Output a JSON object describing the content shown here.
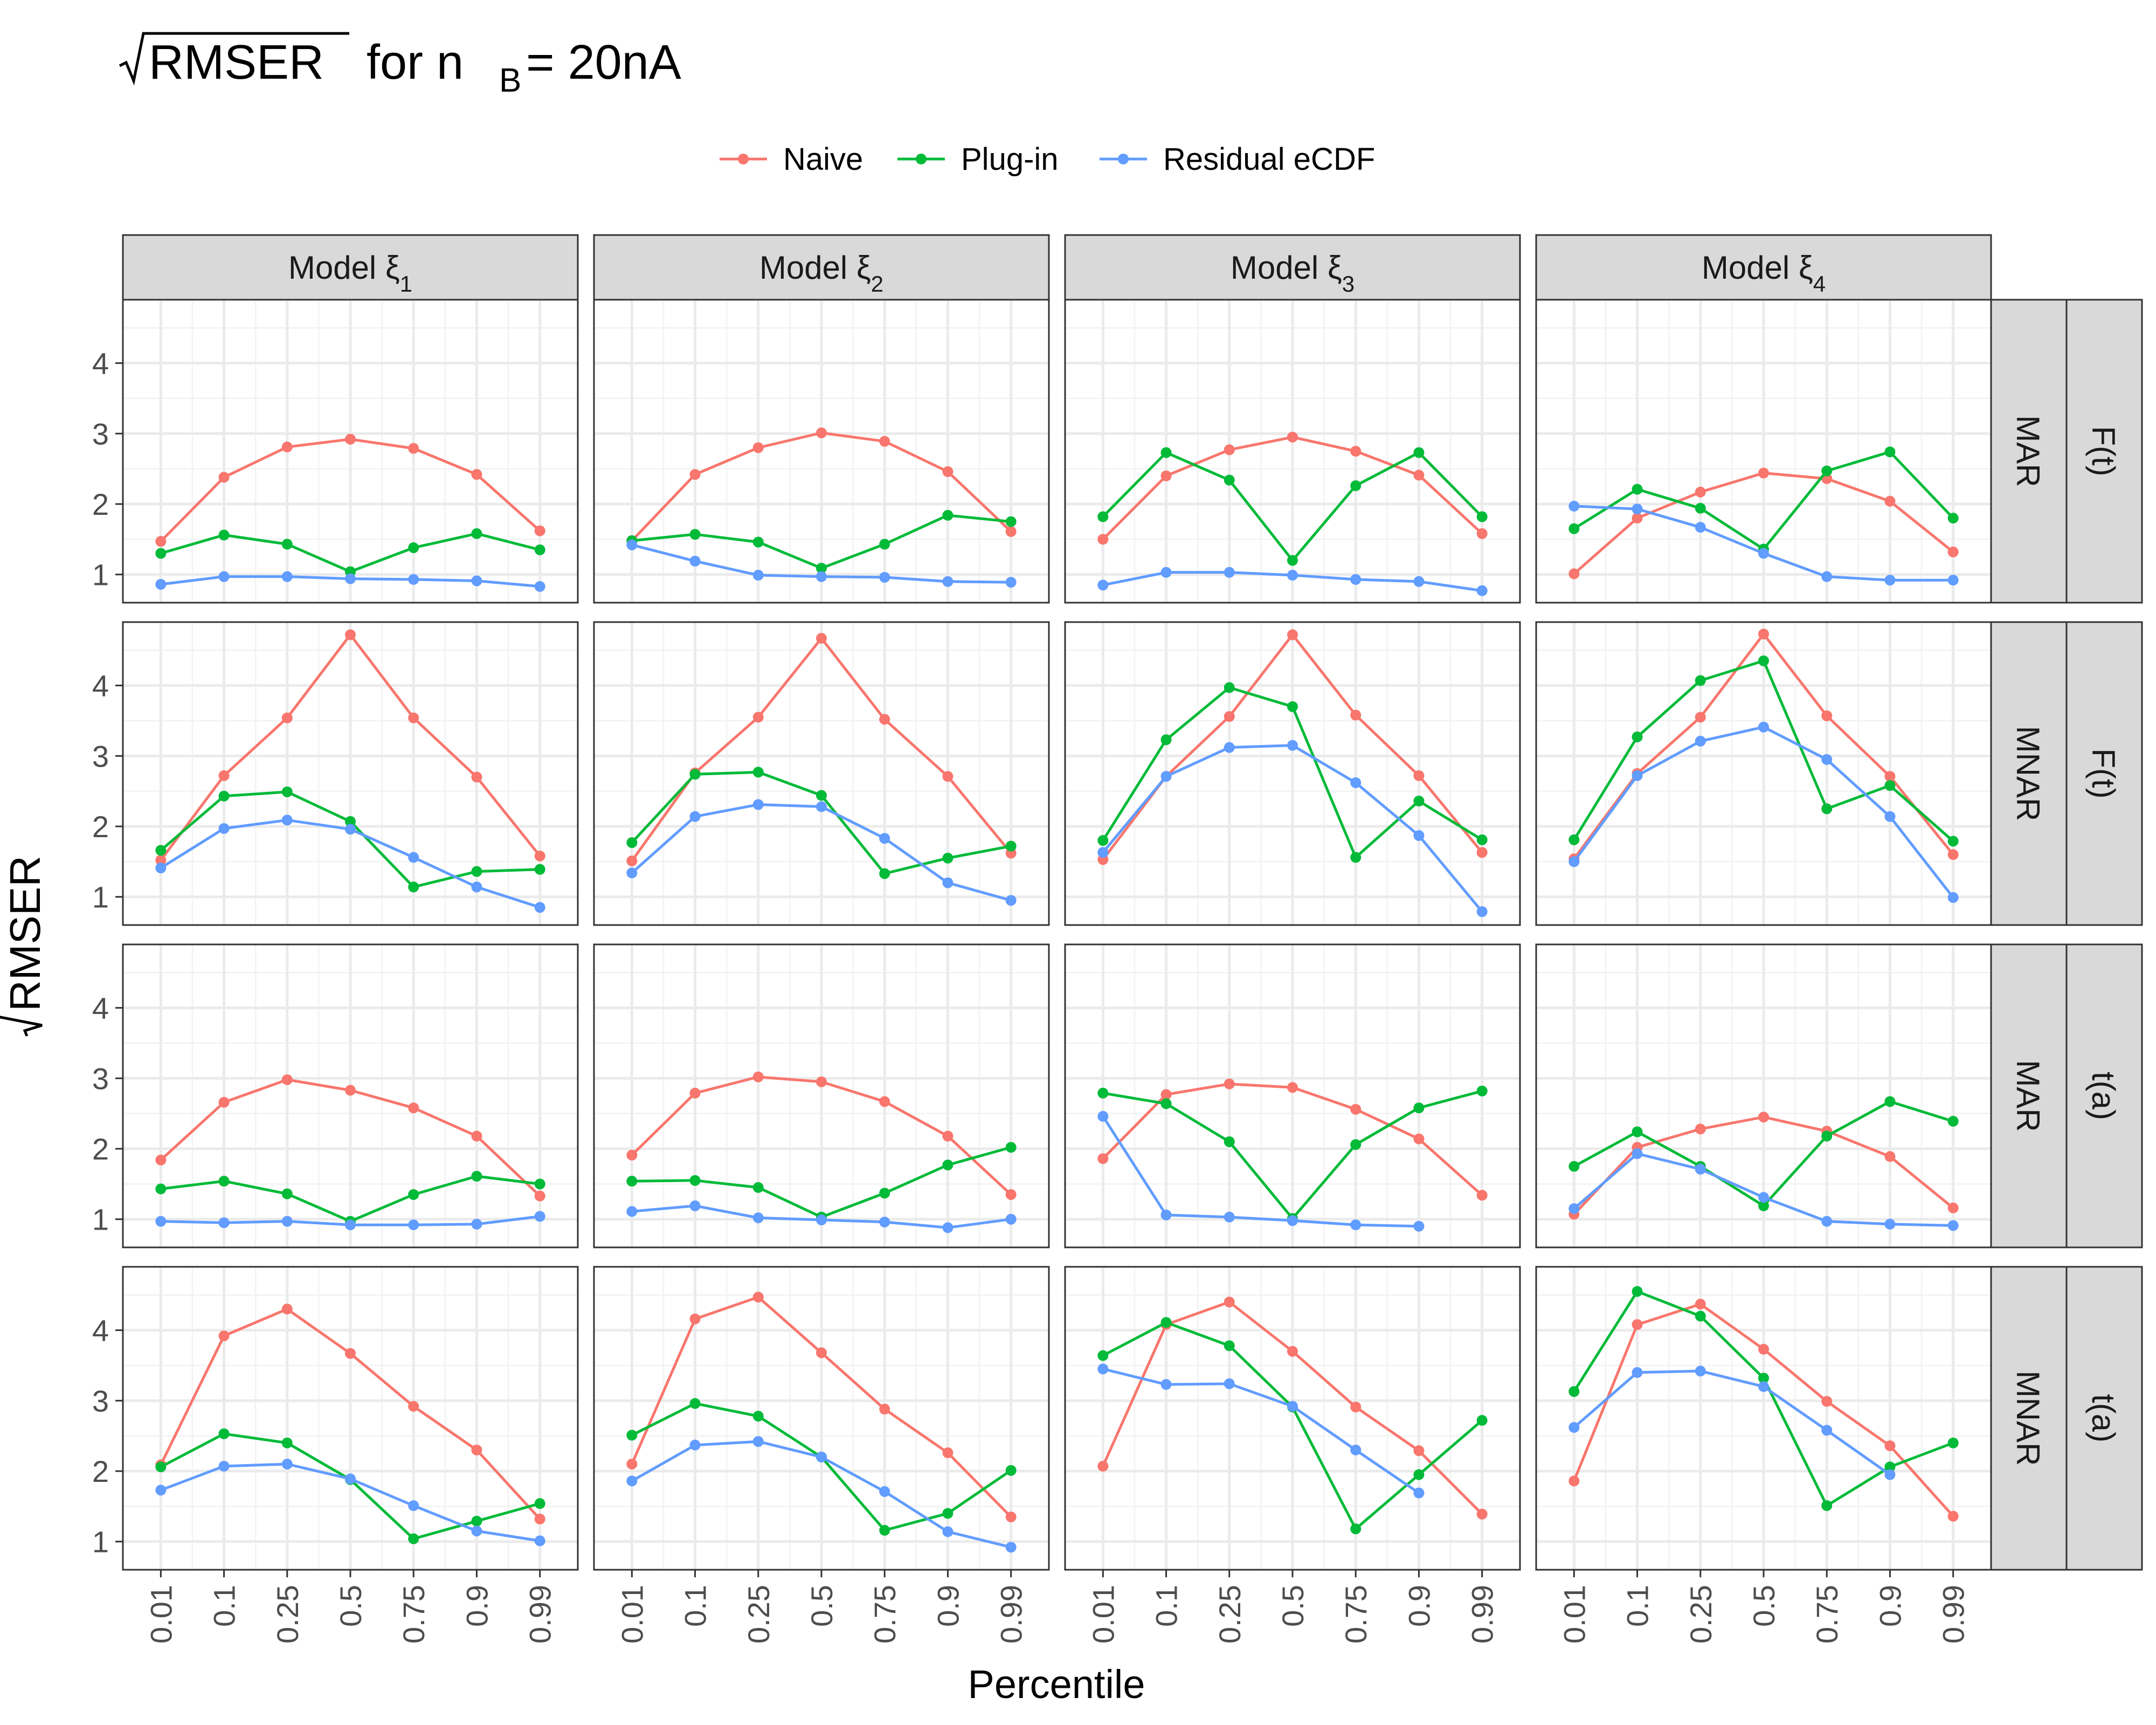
{
  "title": {
    "main": "RMSER",
    "for": "for n",
    "sub": "B",
    "rest": "= 20nA"
  },
  "axes": {
    "xlabel": "Percentile",
    "ylabel": "RMSER"
  },
  "colors": {
    "Naive": "#F8766D",
    "Plug-in": "#00BA38",
    "Residual eCDF": "#619CFF"
  },
  "chart_data": {
    "type": "line",
    "x": [
      "0.01",
      "0.1",
      "0.25",
      "0.5",
      "0.75",
      "0.9",
      "0.99"
    ],
    "yticks": [
      1,
      2,
      3,
      4
    ],
    "ylim": [
      0.6,
      4.9
    ],
    "grid": true,
    "legend": {
      "placement": "top",
      "entries": [
        "Naive",
        "Plug-in",
        "Residual eCDF"
      ]
    },
    "facet_cols": [
      {
        "label": "Model ξ",
        "sub": "1"
      },
      {
        "label": "Model ξ",
        "sub": "2"
      },
      {
        "label": "Model ξ",
        "sub": "3"
      },
      {
        "label": "Model ξ",
        "sub": "4"
      }
    ],
    "facet_rows": [
      {
        "mech": "MAR",
        "func": "F(t)"
      },
      {
        "mech": "MNAR",
        "func": "F(t)"
      },
      {
        "mech": "MAR",
        "func": "t(a)"
      },
      {
        "mech": "MNAR",
        "func": "t(a)"
      }
    ],
    "panels": [
      [
        {
          "Naive": [
            1.47,
            2.38,
            2.81,
            2.92,
            2.79,
            2.42,
            1.62
          ],
          "Plug-in": [
            1.3,
            1.56,
            1.43,
            1.04,
            1.38,
            1.58,
            1.35
          ],
          "Residual eCDF": [
            0.86,
            0.97,
            0.97,
            0.94,
            0.93,
            0.91,
            0.83
          ]
        },
        {
          "Naive": [
            1.48,
            2.42,
            2.8,
            3.01,
            2.89,
            2.46,
            1.61
          ],
          "Plug-in": [
            1.48,
            1.57,
            1.46,
            1.09,
            1.43,
            1.84,
            1.75
          ],
          "Residual eCDF": [
            1.42,
            1.19,
            0.99,
            0.97,
            0.96,
            0.9,
            0.89
          ]
        },
        {
          "Naive": [
            1.5,
            2.4,
            2.77,
            2.95,
            2.75,
            2.41,
            1.58
          ],
          "Plug-in": [
            1.82,
            2.73,
            2.34,
            1.2,
            2.26,
            2.73,
            1.82
          ],
          "Residual eCDF": [
            0.85,
            1.03,
            1.03,
            0.99,
            0.93,
            0.9,
            0.77
          ]
        },
        {
          "Naive": [
            1.01,
            1.8,
            2.17,
            2.44,
            2.36,
            2.04,
            1.32
          ],
          "Plug-in": [
            1.65,
            2.21,
            1.94,
            1.36,
            2.47,
            2.74,
            1.8
          ],
          "Residual eCDF": [
            1.97,
            1.93,
            1.67,
            1.3,
            0.97,
            0.92,
            0.92
          ]
        }
      ],
      [
        {
          "Naive": [
            1.52,
            2.72,
            3.54,
            4.72,
            3.54,
            2.7,
            1.58
          ],
          "Plug-in": [
            1.66,
            2.43,
            2.49,
            2.07,
            1.14,
            1.36,
            1.39
          ],
          "Residual eCDF": [
            1.41,
            1.97,
            2.09,
            1.96,
            1.56,
            1.14,
            0.85
          ]
        },
        {
          "Naive": [
            1.51,
            2.76,
            3.55,
            4.67,
            3.52,
            2.71,
            1.62
          ],
          "Plug-in": [
            1.77,
            2.74,
            2.77,
            2.44,
            1.33,
            1.55,
            1.72
          ],
          "Residual eCDF": [
            1.34,
            2.14,
            2.31,
            2.28,
            1.83,
            1.2,
            0.95
          ]
        },
        {
          "Naive": [
            1.53,
            2.71,
            3.56,
            4.72,
            3.58,
            2.72,
            1.63
          ],
          "Plug-in": [
            1.8,
            3.23,
            3.97,
            3.7,
            1.56,
            2.36,
            1.81
          ],
          "Residual eCDF": [
            1.63,
            2.71,
            3.12,
            3.15,
            2.62,
            1.87,
            0.79
          ]
        },
        {
          "Naive": [
            1.54,
            2.75,
            3.55,
            4.73,
            3.57,
            2.71,
            1.6
          ],
          "Plug-in": [
            1.81,
            3.27,
            4.07,
            4.35,
            2.25,
            2.58,
            1.79
          ],
          "Residual eCDF": [
            1.5,
            2.72,
            3.21,
            3.41,
            2.95,
            2.14,
            0.99
          ]
        }
      ],
      [
        {
          "Naive": [
            1.84,
            2.66,
            2.98,
            2.83,
            2.58,
            2.18,
            1.33
          ],
          "Plug-in": [
            1.43,
            1.54,
            1.36,
            0.97,
            1.35,
            1.61,
            1.5
          ],
          "Residual eCDF": [
            0.97,
            0.95,
            0.97,
            0.92,
            0.92,
            0.93,
            1.04
          ]
        },
        {
          "Naive": [
            1.91,
            2.79,
            3.02,
            2.95,
            2.67,
            2.18,
            1.35
          ],
          "Plug-in": [
            1.54,
            1.55,
            1.45,
            1.03,
            1.37,
            1.77,
            2.02
          ],
          "Residual eCDF": [
            1.11,
            1.19,
            1.02,
            0.99,
            0.96,
            0.88,
            1.0
          ]
        },
        {
          "Naive": [
            1.86,
            2.77,
            2.92,
            2.87,
            2.56,
            2.14,
            1.34
          ],
          "Plug-in": [
            2.79,
            2.64,
            2.1,
            1.01,
            2.06,
            2.58,
            2.82
          ],
          "Residual eCDF": [
            2.46,
            1.06,
            1.03,
            0.98,
            0.92,
            0.9,
            null
          ]
        },
        {
          "Naive": [
            1.07,
            2.02,
            2.28,
            2.45,
            2.25,
            1.89,
            1.16
          ],
          "Plug-in": [
            1.75,
            2.24,
            1.75,
            1.19,
            2.18,
            2.67,
            2.39
          ],
          "Residual eCDF": [
            1.15,
            1.93,
            1.71,
            1.31,
            0.97,
            0.93,
            0.91
          ]
        }
      ],
      [
        {
          "Naive": [
            2.09,
            3.92,
            4.3,
            3.67,
            2.92,
            2.3,
            1.32
          ],
          "Plug-in": [
            2.06,
            2.53,
            2.4,
            1.88,
            1.04,
            1.29,
            1.54
          ],
          "Residual eCDF": [
            1.73,
            2.07,
            2.1,
            1.89,
            1.51,
            1.15,
            1.01
          ]
        },
        {
          "Naive": [
            2.1,
            4.16,
            4.47,
            3.68,
            2.88,
            2.26,
            1.35
          ],
          "Plug-in": [
            2.51,
            2.96,
            2.78,
            2.2,
            1.16,
            1.4,
            2.01
          ],
          "Residual eCDF": [
            1.86,
            2.37,
            2.42,
            2.2,
            1.71,
            1.14,
            0.92
          ]
        },
        {
          "Naive": [
            2.07,
            4.08,
            4.4,
            3.7,
            2.91,
            2.29,
            1.39
          ],
          "Plug-in": [
            3.64,
            4.11,
            3.78,
            2.91,
            1.18,
            1.95,
            2.72
          ],
          "Residual eCDF": [
            3.45,
            3.23,
            3.24,
            2.92,
            2.3,
            1.69,
            null
          ]
        },
        {
          "Naive": [
            1.86,
            4.08,
            4.37,
            3.73,
            2.99,
            2.36,
            1.36
          ],
          "Plug-in": [
            3.13,
            4.55,
            4.2,
            3.32,
            1.51,
            2.06,
            2.4
          ],
          "Residual eCDF": [
            2.62,
            3.4,
            3.42,
            3.2,
            2.58,
            1.95,
            null
          ]
        }
      ]
    ]
  }
}
